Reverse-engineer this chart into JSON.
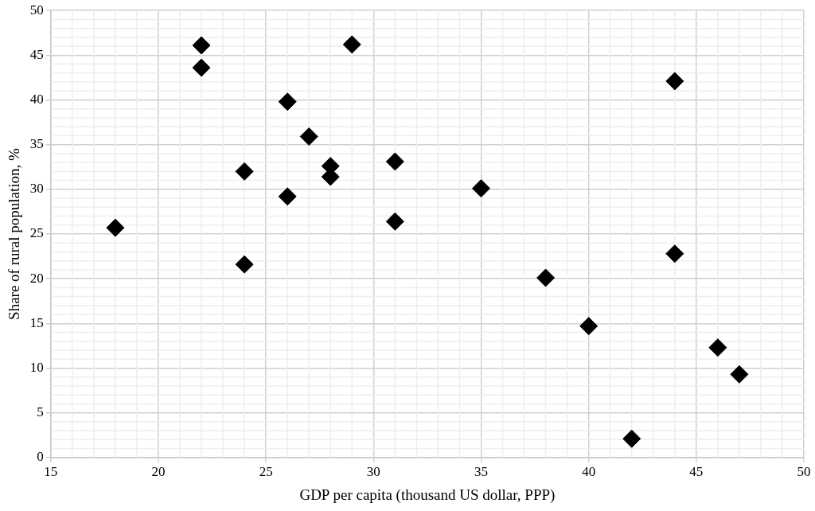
{
  "chart_data": {
    "type": "scatter",
    "xlabel": "GDP per capita (thousand US dollar, PPP)",
    "ylabel": "Share of rural population, %",
    "x": [
      18,
      22,
      22,
      24,
      24,
      26,
      26,
      27,
      28,
      28,
      29,
      31,
      31,
      35,
      38,
      40,
      42,
      44,
      44,
      46,
      47
    ],
    "values": [
      25.7,
      46.1,
      43.6,
      32,
      21.6,
      39.8,
      29.2,
      35.9,
      32.6,
      31.4,
      46.2,
      33.1,
      26.4,
      30.1,
      20.1,
      14.7,
      2.1,
      42.1,
      22.8,
      12.3,
      9.3
    ],
    "color": "#000000",
    "marker": "diamond",
    "xlim": [
      15,
      50
    ],
    "xticks": [
      15,
      20,
      25,
      30,
      35,
      40,
      45,
      50
    ],
    "ylim": [
      0,
      50
    ],
    "yticks": [
      0,
      5,
      10,
      15,
      20,
      25,
      30,
      35,
      40,
      45,
      50
    ],
    "grid": true,
    "legend": false
  }
}
